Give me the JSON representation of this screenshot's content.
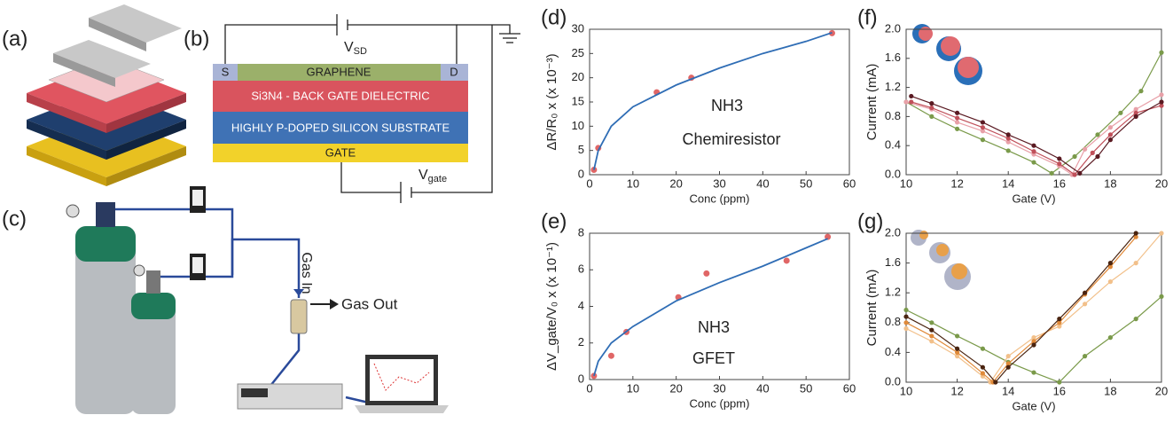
{
  "diagram": {
    "panel_a": "(a)",
    "panel_b": "(b)",
    "panel_c": "(c)",
    "vsd": {
      "main": "V",
      "sub": "SD"
    },
    "source": "S",
    "drain": "D",
    "graphene": "GRAPHENE",
    "dielectric": "Si3N4 - BACK GATE DIELECTRIC",
    "substrate": "HIGHLY P-DOPED SILICON SUBSTRATE",
    "gate": "GATE",
    "vgate": {
      "main": "V",
      "sub": "gate"
    },
    "gas_in": "Gas In",
    "gas_out": "Gas Out"
  },
  "chart_data": [
    {
      "type": "scatter",
      "panel": "(d)",
      "xlabel": "Conc (ppm)",
      "ylabel": "ΔR/R₀ x (x 10⁻³)",
      "annotations": [
        "NH3",
        "Chemiresistor"
      ],
      "xlim": [
        0,
        60
      ],
      "xticks": [
        0,
        10,
        20,
        30,
        40,
        50,
        60
      ],
      "ylim": [
        0,
        30
      ],
      "yticks": [
        0,
        5,
        10,
        15,
        20,
        25,
        30
      ],
      "points": {
        "color": "#e06666",
        "x": [
          1,
          2,
          15.5,
          23.5,
          56
        ],
        "values": [
          1,
          5.5,
          17,
          20,
          29.2
        ]
      },
      "fit": {
        "color": "#2f6db5",
        "x": [
          1,
          2,
          5,
          10,
          20,
          30,
          40,
          50,
          56
        ],
        "values": [
          1,
          5,
          10,
          14,
          18.5,
          22,
          25,
          27.5,
          29.3
        ]
      }
    },
    {
      "type": "scatter",
      "panel": "(e)",
      "xlabel": "Conc (ppm)",
      "ylabel": "ΔV_gate/V₀ x (x 10⁻¹)",
      "annotations": [
        "NH3",
        "GFET"
      ],
      "xlim": [
        0,
        60
      ],
      "xticks": [
        0,
        10,
        20,
        30,
        40,
        50,
        60
      ],
      "ylim": [
        0,
        8
      ],
      "yticks": [
        0,
        2,
        4,
        6,
        8
      ],
      "points": {
        "color": "#e06666",
        "x": [
          1,
          5,
          8.5,
          20.5,
          27,
          45.5,
          55
        ],
        "values": [
          0.2,
          1.3,
          2.6,
          4.5,
          5.8,
          6.5,
          7.8
        ]
      },
      "fit": {
        "color": "#2f6db5",
        "x": [
          1,
          2,
          5,
          10,
          20,
          30,
          40,
          50,
          55
        ],
        "values": [
          0.2,
          1,
          2,
          2.9,
          4.3,
          5.3,
          6.2,
          7.2,
          7.7
        ]
      }
    },
    {
      "type": "line",
      "panel": "(f)",
      "xlabel": "Gate (V)",
      "ylabel": "Current (mA)",
      "xlim": [
        10,
        20
      ],
      "xticks": [
        10,
        12,
        14,
        16,
        18,
        20
      ],
      "ylim": [
        0,
        2
      ],
      "yticks": [
        {
          "value": 0,
          "label": "0.0"
        },
        0.4,
        0.8,
        1.2,
        1.6,
        {
          "value": 2,
          "label": "2.0"
        }
      ],
      "series": [
        {
          "color": "#7a9a4a",
          "x": [
            10,
            11,
            12,
            13,
            14,
            15,
            15.7,
            16.6,
            17.5,
            18.4,
            19.2,
            20
          ],
          "values": [
            1.0,
            0.8,
            0.63,
            0.48,
            0.33,
            0.17,
            0.02,
            0.25,
            0.55,
            0.85,
            1.15,
            1.68
          ]
        },
        {
          "color": "#e8a0a8",
          "x": [
            10,
            11,
            12,
            13,
            14,
            15,
            16,
            16.5,
            17,
            18,
            19,
            20
          ],
          "values": [
            1.0,
            0.9,
            0.72,
            0.6,
            0.45,
            0.28,
            0.12,
            0.0,
            0.35,
            0.65,
            0.9,
            1.1
          ]
        },
        {
          "color": "#c0505a",
          "x": [
            10.2,
            11,
            12,
            13,
            14,
            15,
            16,
            16.6,
            17.3,
            18,
            19,
            20
          ],
          "values": [
            1.0,
            0.92,
            0.78,
            0.65,
            0.5,
            0.32,
            0.15,
            0.0,
            0.3,
            0.55,
            0.85,
            0.95
          ]
        },
        {
          "color": "#5a1a22",
          "x": [
            10.2,
            11,
            12,
            13,
            14,
            15,
            16,
            16.8,
            17.5,
            18,
            19,
            20
          ],
          "values": [
            1.08,
            0.98,
            0.85,
            0.72,
            0.55,
            0.4,
            0.22,
            0.02,
            0.25,
            0.48,
            0.8,
            1.0
          ]
        }
      ]
    },
    {
      "type": "line",
      "panel": "(g)",
      "xlabel": "Gate (V)",
      "ylabel": "Current (mA)",
      "xlim": [
        10,
        20
      ],
      "xticks": [
        10,
        12,
        14,
        16,
        18,
        20
      ],
      "ylim": [
        0,
        2
      ],
      "yticks": [
        {
          "value": 0,
          "label": "0.0"
        },
        0.4,
        0.8,
        1.2,
        1.6,
        {
          "value": 2,
          "label": "2.0"
        }
      ],
      "series": [
        {
          "color": "#7a9a4a",
          "x": [
            10,
            11,
            12,
            13,
            14,
            15,
            16,
            17,
            18,
            19,
            20
          ],
          "values": [
            0.97,
            0.8,
            0.62,
            0.45,
            0.27,
            0.13,
            0.0,
            0.35,
            0.6,
            0.85,
            1.15
          ]
        },
        {
          "color": "#f2c08a",
          "x": [
            10,
            11,
            12,
            13,
            13.3,
            14,
            15,
            16,
            17,
            18,
            19,
            20
          ],
          "values": [
            0.72,
            0.55,
            0.35,
            0.08,
            0.0,
            0.35,
            0.6,
            0.75,
            1.05,
            1.35,
            1.6,
            2.0
          ]
        },
        {
          "color": "#e08a3a",
          "x": [
            10,
            11,
            12,
            13,
            13.4,
            14,
            15,
            16,
            17,
            18,
            19
          ],
          "values": [
            0.8,
            0.62,
            0.4,
            0.12,
            0.0,
            0.25,
            0.55,
            0.8,
            1.18,
            1.55,
            1.95
          ]
        },
        {
          "color": "#4a2410",
          "x": [
            10,
            11,
            12,
            13,
            13.5,
            14,
            15,
            16,
            17,
            18,
            19
          ],
          "values": [
            0.88,
            0.7,
            0.45,
            0.2,
            0.0,
            0.2,
            0.5,
            0.85,
            1.2,
            1.6,
            2.0
          ]
        }
      ]
    }
  ]
}
